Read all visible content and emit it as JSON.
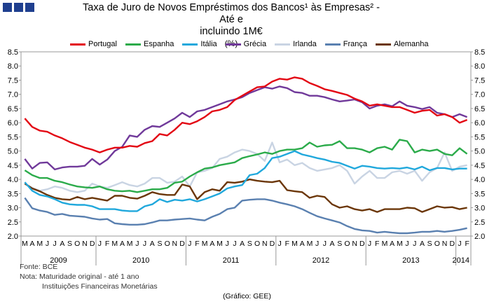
{
  "header": {
    "logo_icon": "bank-logo-squares-icon"
  },
  "title_line1": "Taxa de Juro de Novos Empréstimos dos Bancos¹ às Empresas² - Até e",
  "title_line2": "incluindo 1M€",
  "unit": "(%)",
  "legend": [
    {
      "name": "Portugal",
      "color": "#e30613"
    },
    {
      "name": "Espanha",
      "color": "#2bab4a"
    },
    {
      "name": "Itália",
      "color": "#20a8dc"
    },
    {
      "name": "Grécia",
      "color": "#70399a"
    },
    {
      "name": "Irlanda",
      "color": "#c9d4e3"
    },
    {
      "name": "França",
      "color": "#5a80b0"
    },
    {
      "name": "Alemanha",
      "color": "#6b3608"
    }
  ],
  "notes": {
    "source": "Fonte: BCE",
    "note1": "Nota: Maturidade original - até 1 ano",
    "note2": "Instituições Financeiras Monetárias"
  },
  "credit": "(Gráfico: GEE)",
  "chart_data": {
    "type": "line",
    "title": "Taxa de Juro de Novos Empréstimos dos Bancos¹ às Empresas² - Até e incluindo 1M€",
    "ylabel": "(%)",
    "ylim": [
      2.0,
      8.5
    ],
    "yticks": [
      "2.0",
      "2.5",
      "3.0",
      "3.5",
      "4.0",
      "4.5",
      "5.0",
      "5.5",
      "6.0",
      "6.5",
      "7.0",
      "7.5",
      "8.0",
      "8.5"
    ],
    "grid": false,
    "months": [
      "M",
      "A",
      "M",
      "J",
      "J",
      "A",
      "S",
      "O",
      "N",
      "D",
      "J",
      "F",
      "M",
      "A",
      "M",
      "J",
      "J",
      "A",
      "S",
      "O",
      "N",
      "D",
      "J",
      "F",
      "M",
      "A",
      "M",
      "J",
      "J",
      "A",
      "S",
      "O",
      "N",
      "D",
      "J",
      "F",
      "M",
      "A",
      "M",
      "J",
      "J",
      "A",
      "S",
      "O",
      "N",
      "D",
      "J",
      "F",
      "M",
      "A",
      "M",
      "J",
      "J",
      "A",
      "S",
      "O",
      "N",
      "D",
      "J",
      "F"
    ],
    "years": [
      "2009",
      "2010",
      "2011",
      "2012",
      "2013",
      "2014"
    ],
    "series": [
      {
        "name": "Portugal",
        "color": "#e30613",
        "values": [
          6.15,
          5.85,
          5.72,
          5.68,
          5.55,
          5.45,
          5.32,
          5.22,
          5.12,
          5.05,
          4.95,
          5.05,
          5.12,
          5.12,
          5.18,
          5.15,
          5.28,
          5.35,
          5.6,
          5.55,
          5.75,
          6.0,
          5.95,
          6.05,
          6.2,
          6.4,
          6.45,
          6.55,
          6.8,
          6.95,
          7.1,
          7.25,
          7.28,
          7.45,
          7.55,
          7.52,
          7.6,
          7.55,
          7.4,
          7.3,
          7.18,
          7.12,
          7.05,
          6.98,
          6.85,
          6.75,
          6.6,
          6.65,
          6.6,
          6.55,
          6.55,
          6.45,
          6.35,
          6.42,
          6.45,
          6.25,
          6.3,
          6.2,
          6.0,
          6.1
        ]
      },
      {
        "name": "Espanha",
        "color": "#2bab4a",
        "values": [
          4.32,
          4.15,
          4.05,
          4.05,
          3.95,
          3.9,
          3.82,
          3.75,
          3.72,
          3.7,
          3.75,
          3.65,
          3.6,
          3.58,
          3.6,
          3.55,
          3.6,
          3.65,
          3.65,
          3.7,
          3.88,
          3.92,
          4.1,
          4.25,
          4.38,
          4.42,
          4.5,
          4.55,
          4.6,
          4.75,
          4.82,
          4.88,
          4.95,
          4.9,
          5.0,
          5.05,
          5.05,
          5.1,
          5.3,
          5.15,
          5.2,
          5.22,
          5.35,
          5.1,
          5.1,
          5.05,
          4.95,
          5.1,
          5.15,
          5.05,
          5.4,
          5.35,
          4.95,
          5.05,
          5.0,
          5.05,
          4.9,
          4.85,
          5.1,
          4.9
        ]
      },
      {
        "name": "Itália",
        "color": "#20a8dc",
        "values": [
          3.9,
          3.6,
          3.45,
          3.4,
          3.3,
          3.18,
          3.12,
          3.1,
          3.1,
          3.05,
          2.95,
          2.95,
          2.95,
          2.9,
          2.88,
          2.88,
          3.05,
          3.12,
          3.3,
          3.2,
          3.28,
          3.25,
          3.3,
          3.22,
          3.3,
          3.4,
          3.5,
          3.68,
          3.75,
          3.8,
          4.15,
          4.2,
          4.4,
          4.75,
          4.8,
          4.9,
          5.0,
          4.88,
          4.82,
          4.75,
          4.7,
          4.62,
          4.58,
          4.48,
          4.38,
          4.48,
          4.45,
          4.4,
          4.38,
          4.4,
          4.38,
          4.42,
          4.35,
          4.45,
          4.32,
          4.4,
          4.4,
          4.35,
          4.38,
          4.38
        ]
      },
      {
        "name": "Grécia",
        "color": "#70399a",
        "values": [
          4.72,
          4.38,
          4.58,
          4.6,
          4.35,
          4.42,
          4.45,
          4.45,
          4.48,
          4.72,
          4.52,
          4.7,
          5.0,
          5.15,
          5.55,
          5.5,
          5.75,
          5.88,
          5.85,
          6.0,
          6.15,
          6.35,
          6.2,
          6.4,
          6.45,
          6.55,
          6.65,
          6.75,
          6.82,
          6.9,
          7.05,
          7.15,
          7.25,
          7.2,
          7.28,
          7.22,
          7.08,
          7.05,
          6.95,
          6.95,
          6.9,
          6.82,
          6.75,
          6.78,
          6.82,
          6.72,
          6.5,
          6.6,
          6.65,
          6.58,
          6.75,
          6.6,
          6.55,
          6.48,
          6.55,
          6.35,
          6.3,
          6.2,
          6.3,
          6.2
        ]
      },
      {
        "name": "Irlanda",
        "color": "#c9d4e3",
        "values": [
          3.85,
          3.7,
          3.6,
          3.65,
          3.75,
          3.7,
          3.6,
          3.55,
          3.6,
          3.85,
          3.75,
          3.7,
          3.8,
          3.9,
          3.8,
          3.75,
          3.85,
          4.05,
          4.05,
          3.88,
          3.92,
          4.1,
          3.75,
          4.25,
          4.3,
          4.4,
          4.72,
          4.8,
          4.95,
          5.05,
          5.0,
          4.9,
          4.65,
          5.3,
          4.6,
          4.7,
          4.5,
          4.58,
          4.4,
          4.3,
          4.35,
          4.4,
          4.5,
          4.3,
          3.85,
          4.1,
          4.3,
          4.05,
          4.05,
          4.25,
          4.3,
          4.2,
          4.3,
          3.95,
          4.25,
          4.4,
          4.95,
          4.3,
          4.45,
          4.5
        ]
      },
      {
        "name": "França",
        "color": "#5a80b0",
        "values": [
          3.35,
          2.98,
          2.9,
          2.85,
          2.75,
          2.78,
          2.72,
          2.7,
          2.68,
          2.62,
          2.58,
          2.6,
          2.45,
          2.42,
          2.4,
          2.4,
          2.42,
          2.48,
          2.55,
          2.55,
          2.58,
          2.6,
          2.62,
          2.58,
          2.55,
          2.68,
          2.78,
          2.95,
          3.0,
          3.25,
          3.28,
          3.3,
          3.3,
          3.25,
          3.18,
          3.12,
          3.05,
          2.95,
          2.82,
          2.7,
          2.62,
          2.55,
          2.48,
          2.35,
          2.25,
          2.2,
          2.18,
          2.12,
          2.15,
          2.12,
          2.1,
          2.1,
          2.12,
          2.15,
          2.15,
          2.18,
          2.15,
          2.18,
          2.22,
          2.28
        ]
      },
      {
        "name": "Alemanha",
        "color": "#6b3608",
        "values": [
          3.85,
          3.68,
          3.58,
          3.45,
          3.35,
          3.3,
          3.28,
          3.38,
          3.3,
          3.35,
          3.3,
          3.25,
          3.42,
          3.42,
          3.35,
          3.32,
          3.42,
          3.55,
          3.48,
          3.45,
          3.45,
          3.82,
          3.75,
          3.3,
          3.55,
          3.65,
          3.6,
          3.9,
          3.88,
          3.92,
          4.0,
          3.95,
          3.92,
          3.9,
          3.95,
          3.62,
          3.58,
          3.55,
          3.35,
          3.42,
          3.38,
          3.12,
          3.0,
          3.05,
          2.95,
          2.9,
          2.95,
          2.85,
          2.95,
          2.95,
          2.95,
          3.0,
          2.98,
          2.85,
          2.95,
          3.05,
          3.0,
          3.02,
          2.95,
          3.0
        ]
      }
    ]
  }
}
